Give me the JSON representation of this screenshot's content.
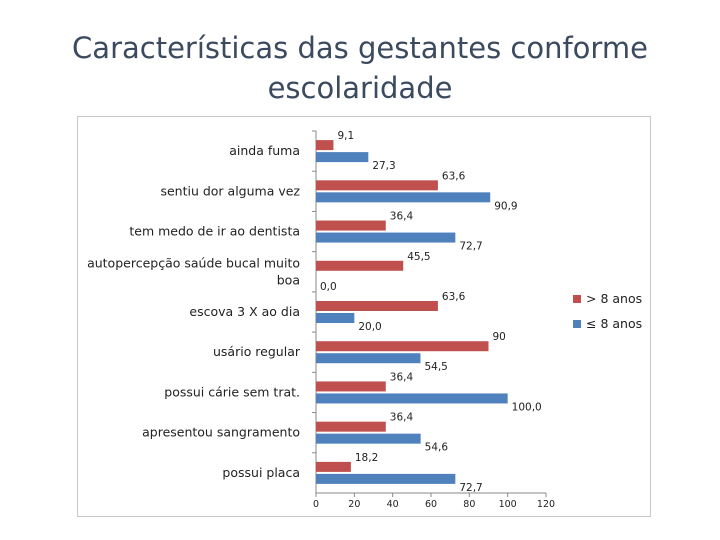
{
  "title_line1": "Características das gestantes conforme",
  "title_line2": "escolaridade",
  "chart_data": {
    "type": "bar",
    "orientation": "horizontal",
    "categories": [
      "ainda fuma",
      "sentiu dor alguma vez",
      "tem medo de ir ao dentista",
      "autopercepção saúde bucal muito boa",
      "escova 3 X ao dia",
      "usário regular",
      "possui cárie sem trat.",
      "apresentou sangramento",
      "possui placa"
    ],
    "category_lines": [
      [
        "ainda fuma"
      ],
      [
        "sentiu dor alguma vez"
      ],
      [
        "tem medo de ir ao dentista"
      ],
      [
        "autopercepção saúde bucal muito",
        "boa"
      ],
      [
        "escova 3 X ao dia"
      ],
      [
        "usário regular"
      ],
      [
        "possui cárie sem trat."
      ],
      [
        "apresentou sangramento"
      ],
      [
        "possui placa"
      ]
    ],
    "series": [
      {
        "name": "> 8 anos",
        "color": "#c0504d",
        "values": [
          9.1,
          63.6,
          36.4,
          45.5,
          63.6,
          90,
          36.4,
          36.4,
          18.2
        ],
        "labels": [
          "9,1",
          "63,6",
          "36,4",
          "45,5",
          "63,6",
          "90",
          "36,4",
          "36,4",
          "18,2"
        ]
      },
      {
        "name": "≤ 8 anos",
        "color": "#4f81bd",
        "values": [
          27.3,
          90.9,
          72.7,
          0.0,
          20.0,
          54.5,
          100.0,
          54.6,
          72.7
        ],
        "labels": [
          "27,3",
          "90,9",
          "72,7",
          "0,0",
          "20,0",
          "54,5",
          "100,0",
          "54,6",
          "72,7"
        ]
      }
    ],
    "xlim": [
      0,
      120
    ],
    "xticks": [
      0,
      20,
      40,
      60,
      80,
      100,
      120
    ],
    "xtick_labels": [
      "0",
      "20",
      "40",
      "60",
      "80",
      "100",
      "120"
    ],
    "grid": false,
    "legend_position": "right"
  }
}
